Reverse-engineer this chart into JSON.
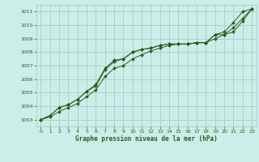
{
  "bg_color": "#cceee8",
  "grid_color": "#aacccc",
  "line_color": "#2d5a1b",
  "xlabel": "Graphe pression niveau de la mer (hPa)",
  "xlim": [
    -0.5,
    23.5
  ],
  "ylim": [
    1002.5,
    1011.5
  ],
  "yticks": [
    1003,
    1004,
    1005,
    1006,
    1007,
    1008,
    1009,
    1010,
    1011
  ],
  "xticks": [
    0,
    1,
    2,
    3,
    4,
    5,
    6,
    7,
    8,
    9,
    10,
    11,
    12,
    13,
    14,
    15,
    16,
    17,
    18,
    19,
    20,
    21,
    22,
    23
  ],
  "series1_x": [
    0,
    1,
    2,
    3,
    4,
    5,
    6,
    7,
    8,
    9,
    10,
    11,
    12,
    13,
    14,
    15,
    16,
    17,
    18,
    19,
    20,
    21,
    22,
    23
  ],
  "series1_y": [
    1003.0,
    1003.3,
    1003.9,
    1004.1,
    1004.5,
    1005.1,
    1005.6,
    1006.8,
    1007.4,
    1007.5,
    1008.0,
    1008.2,
    1008.3,
    1008.5,
    1008.6,
    1008.6,
    1008.6,
    1008.7,
    1008.7,
    1009.3,
    1009.5,
    1010.2,
    1011.0,
    1011.2
  ],
  "series2_x": [
    0,
    1,
    2,
    3,
    4,
    5,
    6,
    7,
    8,
    9,
    10,
    11,
    12,
    13,
    14,
    15,
    16,
    17,
    18,
    19,
    20,
    21,
    22,
    23
  ],
  "series2_y": [
    1003.0,
    1003.3,
    1003.9,
    1004.1,
    1004.5,
    1005.1,
    1005.5,
    1006.7,
    1007.3,
    1007.5,
    1008.0,
    1008.2,
    1008.3,
    1008.5,
    1008.6,
    1008.6,
    1008.6,
    1008.7,
    1008.7,
    1009.3,
    1009.3,
    1009.5,
    1010.3,
    1011.2
  ],
  "series3_x": [
    0,
    1,
    2,
    3,
    4,
    5,
    6,
    7,
    8,
    9,
    10,
    11,
    12,
    13,
    14,
    15,
    16,
    17,
    18,
    19,
    20,
    21,
    22,
    23
  ],
  "series3_y": [
    1003.0,
    1003.2,
    1003.6,
    1003.9,
    1004.2,
    1004.7,
    1005.2,
    1006.2,
    1006.8,
    1007.0,
    1007.5,
    1007.8,
    1008.1,
    1008.3,
    1008.5,
    1008.6,
    1008.6,
    1008.7,
    1008.7,
    1009.0,
    1009.3,
    1009.8,
    1010.5,
    1011.2
  ]
}
